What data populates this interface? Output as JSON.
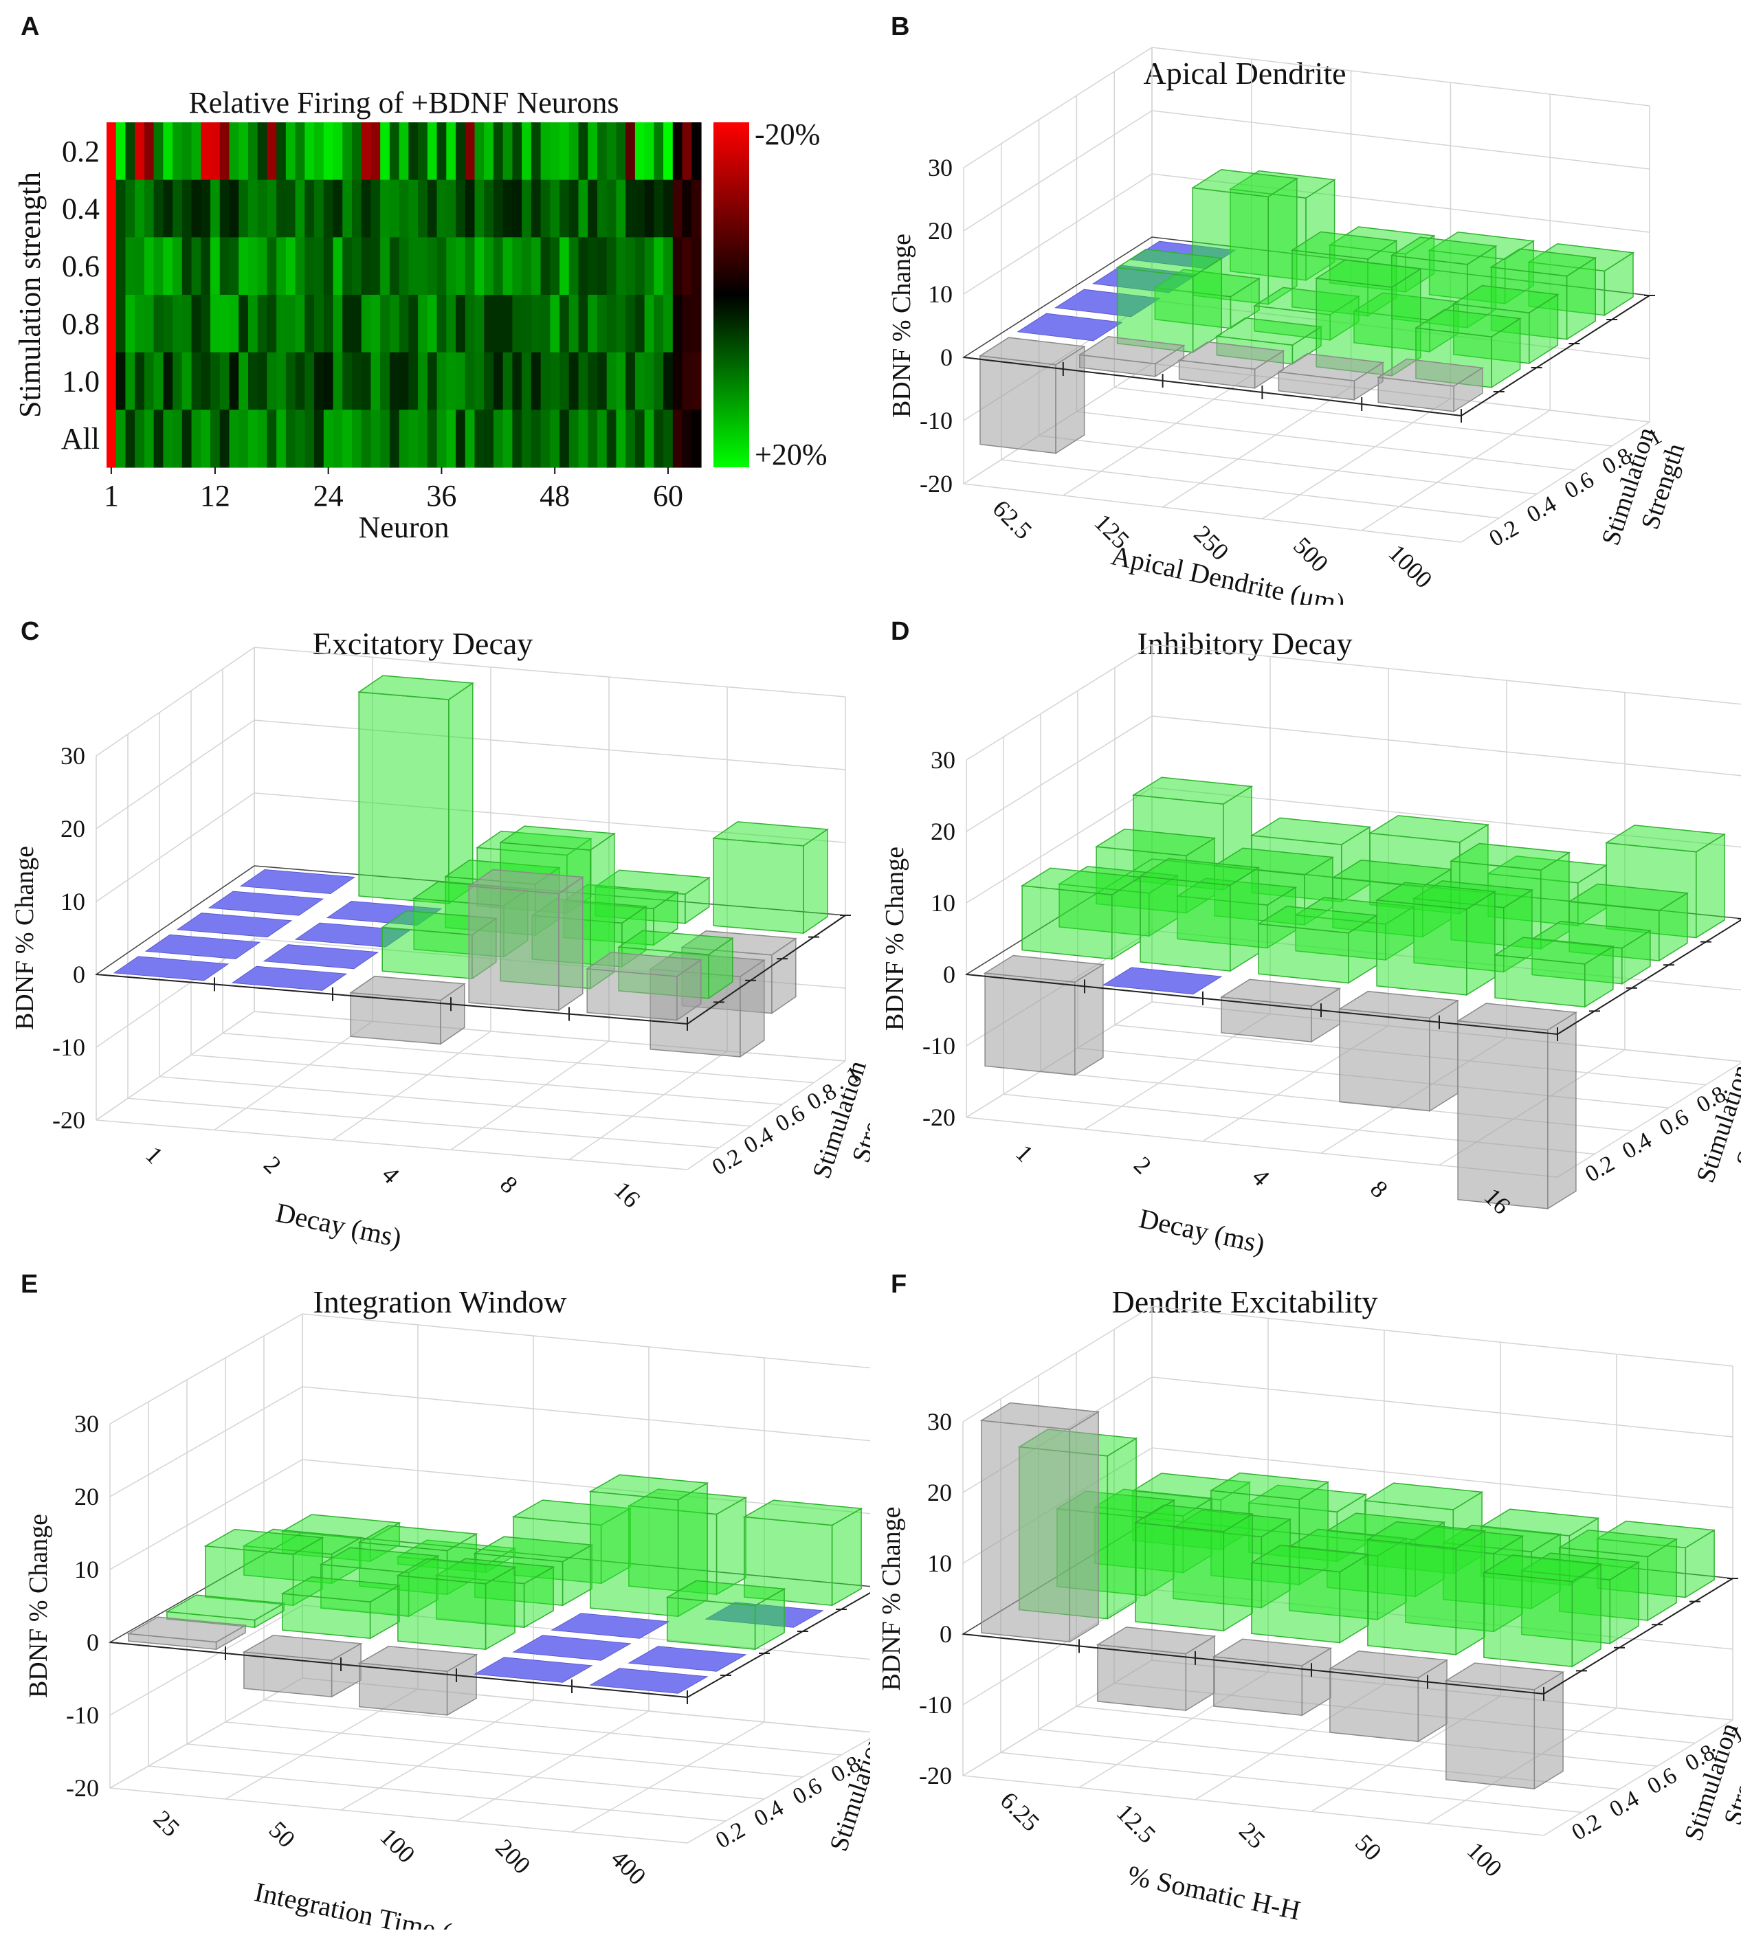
{
  "panels": {
    "A": {
      "letter": "A"
    },
    "B": {
      "letter": "B"
    },
    "C": {
      "letter": "C"
    },
    "D": {
      "letter": "D"
    },
    "E": {
      "letter": "E"
    },
    "F": {
      "letter": "F"
    }
  },
  "chart_data": [
    {
      "id": "A",
      "type": "heatmap",
      "title": "Relative Firing of +BDNF Neurons",
      "xlabel": "Neuron",
      "ylabel": "Stimulation strength",
      "rows": [
        "0.2",
        "0.4",
        "0.6",
        "0.8",
        "1.0",
        "All"
      ],
      "x_ticks": [
        "1",
        "12",
        "24",
        "36",
        "48",
        "60"
      ],
      "n_neurons": 63,
      "colorbar_top_label": "-20%",
      "colorbar_bottom_label": "+20%",
      "color_low": "#ff0000",
      "color_mid": "#000000",
      "color_high": "#00ff00",
      "value_range": [
        -20,
        20
      ]
    },
    {
      "id": "B",
      "type": "bar3d",
      "title": "Apical Dendrite",
      "xlabel": "Apical Dendrite (μm)",
      "ylabel": "BDNF % Change",
      "zlabel": "Stimulation Strength",
      "categories": [
        "62.5",
        "125",
        "250",
        "500",
        "1000"
      ],
      "depth": [
        "0.2",
        "0.4",
        "0.6",
        "0.8",
        "1"
      ],
      "y_ticks": [
        "30",
        "20",
        "10",
        "0",
        "-10",
        "-20"
      ],
      "ylim": [
        -20,
        30
      ],
      "values": [
        [
          -14,
          2,
          3,
          3,
          4
        ],
        [
          0,
          12,
          3,
          14,
          8
        ],
        [
          0,
          5,
          4,
          5,
          8
        ],
        [
          0,
          17,
          9,
          10,
          10
        ],
        [
          0,
          13,
          6,
          7,
          7
        ]
      ]
    },
    {
      "id": "C",
      "type": "bar3d",
      "title": "Excitatory Decay",
      "xlabel": "Decay (ms)",
      "ylabel": "BDNF % Change",
      "zlabel": "Stimulation Strength",
      "categories": [
        "1",
        "2",
        "4",
        "8",
        "16"
      ],
      "depth": [
        "0.2",
        "0.4",
        "0.6",
        "0.8",
        "1"
      ],
      "y_ticks": [
        "30",
        "20",
        "10",
        "0",
        "-10",
        "-20"
      ],
      "ylim": [
        -20,
        30
      ],
      "values": [
        [
          0,
          0,
          -6,
          16,
          6
        ],
        [
          0,
          0,
          6,
          19,
          6
        ],
        [
          0,
          0,
          7,
          6,
          -11
        ],
        [
          0,
          0,
          7,
          5,
          -8
        ],
        [
          0,
          28,
          8,
          4,
          12
        ]
      ]
    },
    {
      "id": "D",
      "type": "bar3d",
      "title": "Inhibitory Decay",
      "xlabel": "Decay (ms)",
      "ylabel": "BDNF % Change",
      "zlabel": "Stimulation Strength",
      "categories": [
        "1",
        "2",
        "4",
        "8",
        "16"
      ],
      "depth": [
        "0.2",
        "0.4",
        "0.6",
        "0.8",
        "1"
      ],
      "y_ticks": [
        "30",
        "20",
        "10",
        "0",
        "-10",
        "-20"
      ],
      "ylim": [
        -20,
        30
      ],
      "values": [
        [
          -13,
          0,
          -5,
          -13,
          -25
        ],
        [
          9,
          12,
          7,
          12,
          6
        ],
        [
          6,
          6,
          5,
          9,
          5
        ],
        [
          8,
          7,
          7,
          11,
          7
        ],
        [
          12,
          8,
          10,
          6,
          12
        ]
      ]
    },
    {
      "id": "E",
      "type": "bar3d",
      "title": "Integration Window",
      "xlabel": "Integration Time (ms)",
      "ylabel": "BDNF % Change",
      "zlabel": "Stimulation Strength",
      "categories": [
        "25",
        "50",
        "100",
        "200",
        "400"
      ],
      "depth": [
        "0.2",
        "0.4",
        "0.6",
        "0.8",
        "1"
      ],
      "y_ticks": [
        "30",
        "20",
        "10",
        "0",
        "-10",
        "-20"
      ],
      "ylim": [
        -20,
        30
      ],
      "values": [
        [
          1,
          -5,
          -6,
          0,
          0
        ],
        [
          1,
          5,
          9,
          0,
          0
        ],
        [
          7,
          6,
          6,
          0,
          6
        ],
        [
          4,
          6,
          6,
          16,
          0
        ],
        [
          3,
          1,
          8,
          11,
          11
        ]
      ]
    },
    {
      "id": "F",
      "type": "bar3d",
      "title": "Dendrite Excitability",
      "xlabel": "% Somatic H-H",
      "ylabel": "BDNF % Change",
      "zlabel": "Stimulation Strength",
      "categories": [
        "6.25",
        "12.5",
        "25",
        "50",
        "100"
      ],
      "depth": [
        "0.2",
        "0.4",
        "0.6",
        "0.8",
        "1"
      ],
      "y_ticks": [
        "30",
        "20",
        "10",
        "0",
        "-10",
        "-20"
      ],
      "ylim": [
        -20,
        30
      ],
      "values": [
        [
          30,
          -8,
          -7,
          -9,
          -14
        ],
        [
          23,
          14,
          10,
          15,
          12
        ],
        [
          11,
          10,
          9,
          11,
          9
        ],
        [
          8,
          12,
          8,
          8,
          9
        ],
        [
          7,
          7,
          9,
          7,
          7
        ]
      ]
    }
  ]
}
